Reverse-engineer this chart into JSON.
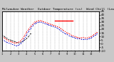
{
  "title": "Milwaukee Weather  Outdoor Temperature (vs)  Wind Chill (Last 24 Hours)",
  "title_fontsize": 3.2,
  "background_color": "#c8c8c8",
  "plot_bg_color": "#ffffff",
  "grid_color": "#888888",
  "ylim": [
    -10,
    45
  ],
  "xlim": [
    0,
    48
  ],
  "yticks": [
    -10,
    -5,
    0,
    5,
    10,
    15,
    20,
    25,
    30,
    35,
    40,
    45
  ],
  "ytick_labels": [
    "-10",
    "-5",
    "0",
    "5",
    "10",
    "15",
    "20",
    "25",
    "30",
    "35",
    "40",
    "45"
  ],
  "ytick_fontsize": 3.0,
  "xtick_fontsize": 2.5,
  "vgrid_positions": [
    0,
    2,
    4,
    6,
    8,
    10,
    12,
    14,
    16,
    18,
    20,
    22,
    24,
    26,
    28,
    30,
    32,
    34,
    36,
    38,
    40,
    42,
    44,
    46,
    48
  ],
  "xtick_positions": [
    0,
    4,
    8,
    12,
    16,
    20,
    24,
    28,
    32,
    36,
    40,
    44,
    48
  ],
  "xtick_labels": [
    "1",
    "2",
    "3",
    "4",
    "5",
    "6",
    "7",
    "8",
    "9",
    "10",
    "11",
    "12",
    ""
  ],
  "outdoor_temp_x": [
    0,
    1,
    2,
    3,
    4,
    5,
    6,
    7,
    8,
    9,
    10,
    11,
    12,
    13,
    14,
    15,
    16,
    17,
    18,
    19,
    20,
    21,
    22,
    23,
    24,
    25,
    26,
    27,
    28,
    29,
    30,
    31,
    32,
    33,
    34,
    35,
    36,
    37,
    38,
    39,
    40,
    41,
    42,
    43,
    44,
    45,
    46,
    47
  ],
  "outdoor_temp_y": [
    10,
    8,
    6,
    4,
    3,
    2,
    1,
    1,
    2,
    4,
    7,
    11,
    16,
    20,
    24,
    27,
    30,
    31,
    32,
    32,
    31,
    30,
    29,
    28,
    27,
    26,
    25,
    24,
    23,
    21,
    19,
    17,
    15,
    14,
    12,
    11,
    10,
    9,
    8,
    8,
    9,
    8,
    8,
    9,
    10,
    12,
    14,
    16
  ],
  "wind_chill_x": [
    0,
    1,
    2,
    3,
    4,
    5,
    6,
    7,
    8,
    9,
    10,
    11,
    12,
    13,
    14,
    15,
    16,
    17,
    18,
    19,
    20,
    21,
    22,
    23,
    24,
    25,
    26,
    27,
    28,
    29,
    30,
    31,
    32,
    33,
    34,
    35,
    36,
    37,
    38,
    39,
    40,
    41,
    42,
    43,
    44,
    45,
    46,
    47
  ],
  "wind_chill_y": [
    5,
    4,
    2,
    1,
    0,
    -1,
    -2,
    -3,
    -2,
    0,
    3,
    7,
    12,
    17,
    21,
    25,
    28,
    29,
    30,
    30,
    29,
    28,
    27,
    26,
    25,
    24,
    23,
    22,
    20,
    18,
    16,
    14,
    13,
    11,
    10,
    9,
    8,
    7,
    7,
    6,
    6,
    6,
    6,
    7,
    8,
    10,
    12,
    14
  ],
  "black_x": [
    0,
    1,
    2,
    3,
    4,
    5,
    6,
    7,
    8,
    9,
    10,
    11,
    12,
    13,
    14
  ],
  "black_y": [
    12,
    10,
    8,
    6,
    5,
    4,
    3,
    2,
    1,
    2,
    3,
    5,
    7,
    10,
    14
  ],
  "red_h_x1": 26,
  "red_h_x2": 35,
  "red_h_y": 32,
  "outdoor_color": "#ff0000",
  "wind_chill_color": "#0000cc",
  "black_color": "#000000",
  "red_h_color": "#ff0000",
  "line_width": 0.7,
  "marker_size": 1.2
}
